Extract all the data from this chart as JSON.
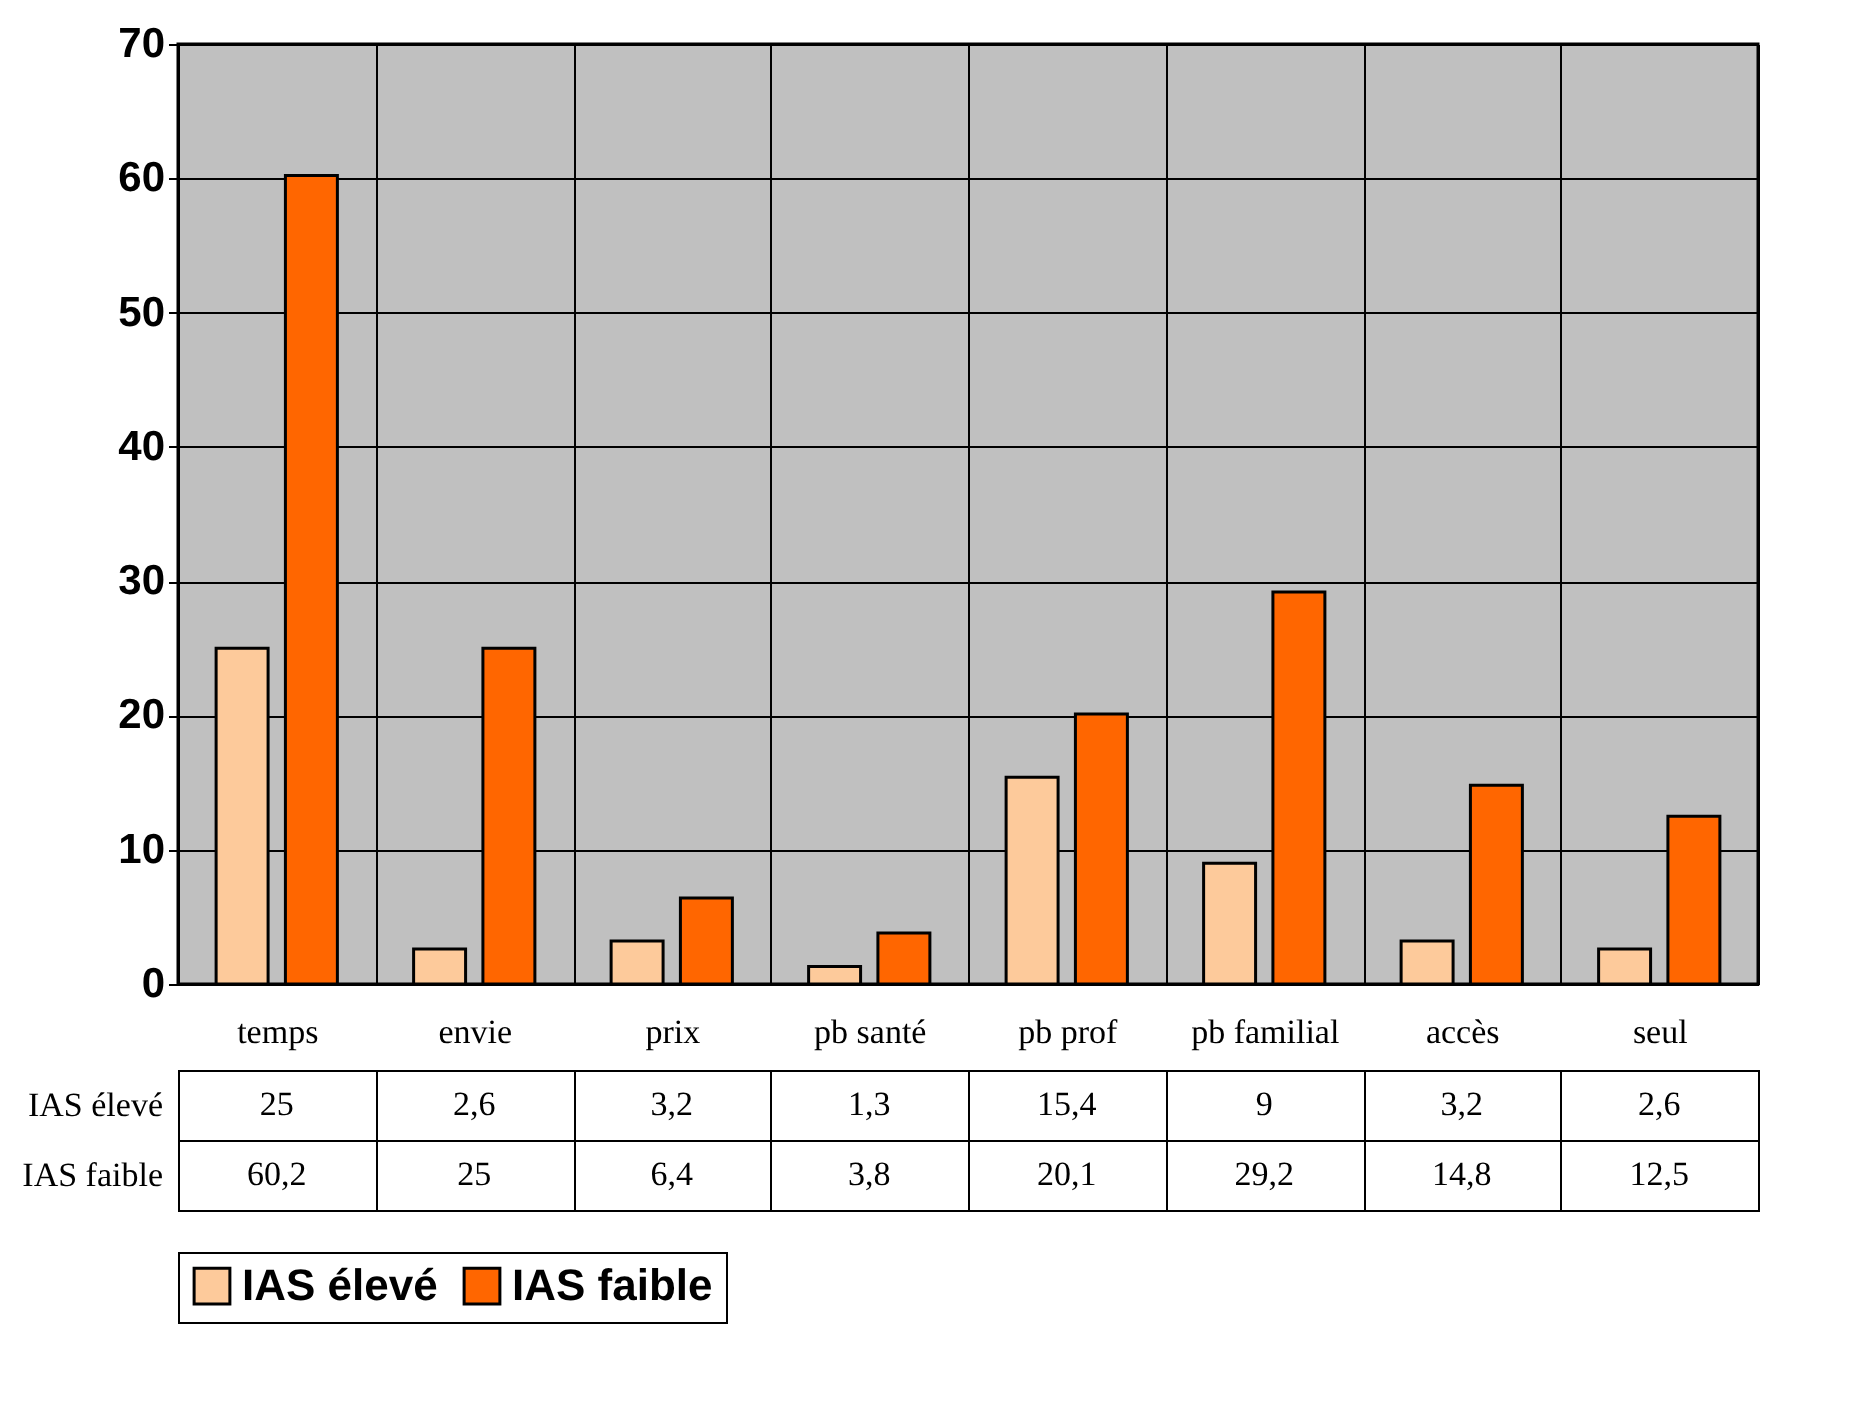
{
  "chart_data": {
    "type": "bar",
    "categories": [
      "temps",
      "envie",
      "prix",
      "pb santé",
      "pb prof",
      "pb familial",
      "accès",
      "seul"
    ],
    "series": [
      {
        "name": "IAS élevé",
        "color": "#fdca9b",
        "values": [
          25,
          2.6,
          3.2,
          1.3,
          15.4,
          9,
          3.2,
          2.6
        ],
        "value_labels": [
          "25",
          "2,6",
          "3,2",
          "1,3",
          "15,4",
          "9",
          "3,2",
          "2,6"
        ]
      },
      {
        "name": "IAS faible",
        "color": "#ff6600",
        "values": [
          60.2,
          25,
          6.4,
          3.8,
          20.1,
          29.2,
          14.8,
          12.5
        ],
        "value_labels": [
          "60,2",
          "25",
          "6,4",
          "3,8",
          "20,1",
          "29,2",
          "14,8",
          "12,5"
        ]
      }
    ],
    "ylim": [
      0,
      70
    ],
    "yticks": [
      0,
      10,
      20,
      30,
      40,
      50,
      60,
      70
    ],
    "grid": "y",
    "legend": "bottom"
  }
}
